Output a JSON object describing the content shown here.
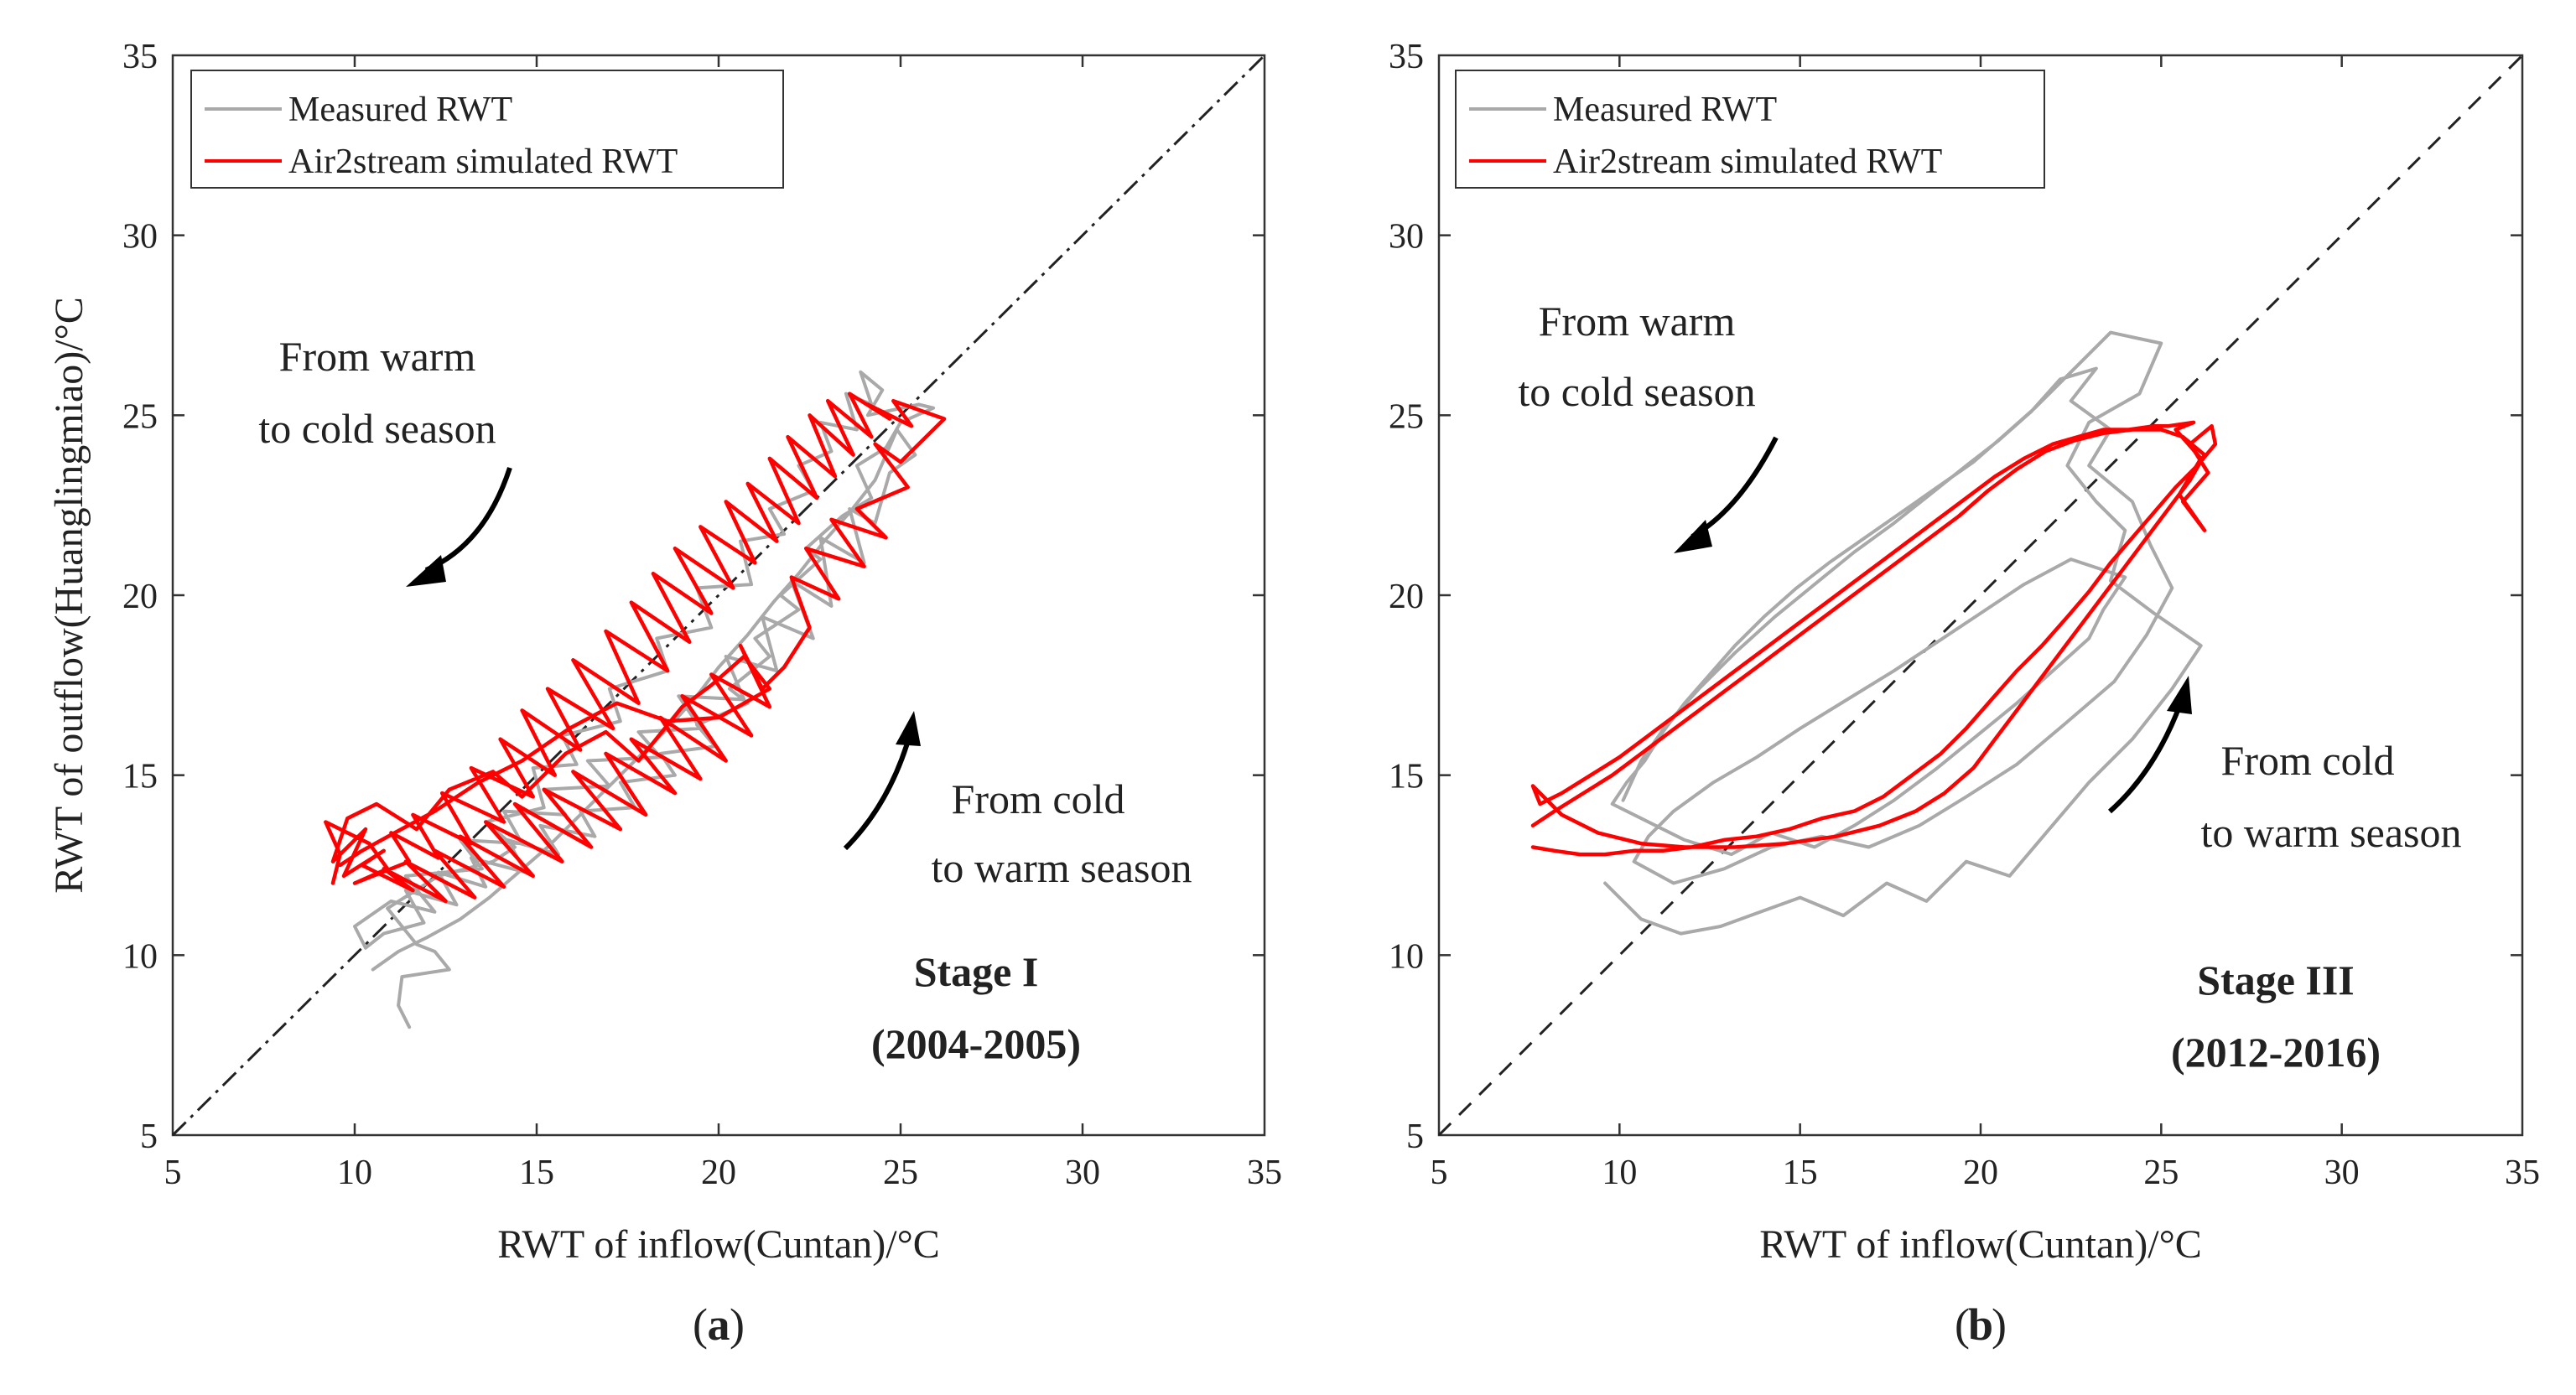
{
  "colors": {
    "measured": "#a9a9a9",
    "simulated": "#ff0000",
    "axis": "#333333",
    "identity": "#222222"
  },
  "chart_data": [
    {
      "panel": "a",
      "type": "line",
      "sublabel_letter": "a",
      "xlabel": "RWT of inflow(Cuntan)/°C",
      "ylabel": "RWT of outflow(Huanglingmiao)/°C",
      "xlim": [
        5,
        35
      ],
      "ylim": [
        5,
        35
      ],
      "xticks": [
        "5",
        "10",
        "15",
        "20",
        "25",
        "30",
        "35"
      ],
      "yticks": [
        "5",
        "10",
        "15",
        "20",
        "25",
        "30",
        "35"
      ],
      "legend": {
        "placement": "top-left",
        "entries": [
          "Measured RWT",
          "Air2stream simulated RWT"
        ]
      },
      "identity_line_style": "dash-dot",
      "annotations": {
        "warm_to_cold": [
          "From warm",
          "to cold season"
        ],
        "cold_to_warm": [
          "From cold",
          "to warm season"
        ],
        "stage": [
          "Stage I",
          "(2004-2005)"
        ]
      },
      "series": [
        {
          "name": "Measured RWT",
          "x": [
            11.5,
            11.2,
            11.3,
            12.6,
            12.2,
            11.7,
            11.3,
            10.9,
            12.3,
            13.8,
            14.4,
            13.6,
            15.2,
            14.9,
            16.1,
            15.7,
            17.3,
            17.0,
            18.6,
            18.3,
            19.8,
            19.4,
            20.9,
            20.6,
            21.8,
            21.4,
            22.6,
            22.2,
            23.1,
            22.8,
            23.8,
            23.5,
            24.2,
            23.9,
            24.5,
            24.1,
            25.5,
            25.9,
            25.0,
            24.6,
            23.8,
            24.2,
            23.4,
            22.4,
            22.8,
            21.7,
            22.2,
            21.0,
            21.4,
            20.3,
            20.8,
            19.4,
            19.9,
            18.4,
            18.8,
            17.3,
            17.7,
            16.2,
            16.6,
            15.1,
            15.6,
            14.2,
            14.7,
            13.2,
            13.6,
            12.3,
            12.8,
            11.4,
            11.9,
            10.8,
            10.3,
            10.0,
            11.0,
            12.2,
            11.4,
            13.5,
            12.9,
            14.6,
            14.1,
            15.8,
            15.2,
            17.0,
            16.4,
            18.4,
            17.8,
            19.5,
            18.9,
            20.7,
            20.2,
            21.6,
            21.2,
            22.6,
            22.0,
            23.1,
            22.8,
            24.0,
            23.6,
            24.3,
            24.7,
            25.4,
            24.9,
            24.3,
            23.6,
            22.9,
            22.2,
            21.5,
            20.8,
            20.0,
            19.4,
            18.6,
            17.8,
            17.0,
            16.1,
            15.3,
            14.5,
            13.7,
            12.9,
            12.0,
            11.2,
            10.5
          ],
          "y": [
            8.0,
            8.6,
            9.4,
            9.6,
            10.1,
            10.3,
            10.8,
            11.3,
            12.2,
            12.6,
            13.0,
            13.7,
            14.1,
            15.2,
            15.3,
            16.1,
            16.5,
            17.4,
            17.9,
            18.8,
            19.1,
            20.2,
            20.3,
            21.5,
            21.7,
            22.4,
            22.9,
            23.6,
            24.0,
            24.8,
            24.6,
            25.6,
            25.3,
            26.2,
            25.7,
            25.0,
            25.3,
            25.2,
            24.8,
            24.1,
            23.6,
            22.7,
            22.2,
            21.3,
            21.0,
            20.0,
            19.6,
            18.8,
            18.3,
            17.4,
            17.0,
            16.4,
            15.8,
            15.6,
            15.0,
            14.8,
            14.1,
            14.0,
            13.3,
            13.6,
            12.8,
            13.2,
            12.3,
            12.7,
            11.9,
            12.3,
            11.4,
            11.8,
            10.9,
            10.6,
            10.2,
            10.8,
            11.5,
            11.2,
            12.2,
            12.4,
            13.2,
            13.1,
            14.0,
            13.9,
            14.6,
            14.7,
            15.4,
            15.5,
            16.2,
            16.3,
            17.2,
            17.1,
            18.3,
            17.9,
            19.4,
            18.8,
            20.4,
            19.7,
            21.6,
            20.9,
            22.4,
            22.0,
            23.4,
            23.9,
            24.6,
            23.2,
            22.3,
            21.5,
            20.6,
            19.8,
            18.9,
            18.0,
            17.2,
            16.3,
            15.5,
            14.7,
            13.8,
            13.0,
            12.3,
            11.6,
            11.0,
            10.5,
            10.1,
            9.6
          ]
        },
        {
          "name": "Air2stream simulated RWT",
          "x": [
            9.4,
            9.6,
            9.2,
            10.4,
            10.9,
            10.0,
            11.5,
            11.0,
            12.3,
            11.6,
            13.2,
            12.4,
            14.1,
            13.2,
            14.9,
            14.0,
            15.5,
            14.6,
            16.2,
            15.3,
            17.1,
            16.0,
            17.8,
            16.9,
            18.6,
            17.6,
            19.2,
            18.2,
            19.8,
            18.8,
            20.4,
            19.5,
            21.0,
            20.2,
            21.6,
            20.8,
            22.2,
            21.4,
            22.7,
            21.9,
            23.2,
            22.5,
            23.7,
            23.0,
            24.2,
            23.6,
            24.7,
            24.1,
            25.3,
            24.8,
            26.2,
            25.0,
            24.3,
            25.2,
            23.8,
            24.6,
            23.1,
            24.0,
            22.4,
            23.3,
            22.0,
            22.5,
            21.8,
            21.2,
            20.6,
            21.4,
            19.8,
            20.9,
            19.0,
            20.2,
            18.4,
            19.5,
            17.6,
            18.8,
            16.9,
            18.0,
            16.0,
            17.3,
            15.2,
            16.5,
            14.4,
            15.7,
            13.6,
            14.9,
            12.9,
            14.1,
            12.2,
            13.3,
            11.4,
            12.5,
            10.8,
            11.6,
            10.2,
            10.8,
            9.7,
            10.3,
            9.4,
            9.8,
            10.6,
            11.7,
            12.6,
            13.8,
            14.6,
            15.8,
            16.9,
            17.8,
            19.0,
            19.8,
            20.7,
            21.4,
            20.0,
            18.6,
            17.2,
            15.9,
            14.6,
            13.4,
            12.2,
            11.1,
            10.2,
            9.6
          ],
          "y": [
            12.0,
            12.8,
            13.7,
            13.1,
            12.4,
            12.0,
            12.6,
            13.4,
            12.7,
            13.9,
            13.1,
            14.5,
            13.7,
            15.2,
            14.4,
            16.0,
            15.0,
            16.8,
            15.7,
            17.4,
            16.3,
            18.2,
            17.0,
            19.0,
            17.9,
            19.8,
            18.7,
            20.6,
            19.5,
            21.3,
            20.2,
            21.9,
            20.9,
            22.6,
            21.5,
            23.1,
            22.0,
            23.8,
            22.7,
            24.4,
            23.3,
            25.0,
            23.9,
            25.4,
            24.4,
            25.6,
            24.9,
            25.3,
            24.7,
            25.4,
            24.9,
            23.7,
            24.2,
            23.0,
            22.4,
            21.6,
            22.1,
            20.8,
            21.3,
            19.9,
            20.5,
            19.1,
            18.0,
            17.4,
            18.6,
            16.9,
            17.8,
            16.1,
            17.2,
            15.4,
            16.6,
            14.9,
            16.0,
            14.5,
            15.6,
            13.9,
            15.1,
            13.5,
            14.6,
            13.0,
            14.2,
            12.6,
            13.7,
            12.2,
            13.3,
            11.9,
            12.9,
            11.6,
            12.6,
            11.5,
            12.4,
            11.8,
            12.5,
            12.9,
            12.2,
            13.5,
            12.6,
            13.8,
            14.2,
            13.5,
            14.6,
            15.1,
            14.4,
            15.6,
            16.2,
            15.4,
            16.9,
            17.5,
            18.3,
            17.4,
            16.6,
            16.5,
            17.0,
            16.3,
            15.4,
            14.8,
            14.0,
            13.4,
            12.9,
            12.5
          ]
        }
      ]
    },
    {
      "panel": "b",
      "type": "line",
      "sublabel_letter": "b",
      "xlabel": "RWT of inflow(Cuntan)/°C",
      "ylabel": "",
      "xlim": [
        5,
        35
      ],
      "ylim": [
        5,
        35
      ],
      "xticks": [
        "5",
        "10",
        "15",
        "20",
        "25",
        "30",
        "35"
      ],
      "yticks": [
        "5",
        "10",
        "15",
        "20",
        "25",
        "30",
        "35"
      ],
      "legend": {
        "placement": "top-left",
        "entries": [
          "Measured RWT",
          "Air2stream simulated RWT"
        ]
      },
      "identity_line_style": "dashed",
      "annotations": {
        "warm_to_cold": [
          "From warm",
          "to cold season"
        ],
        "cold_to_warm": [
          "From cold",
          "to warm season"
        ],
        "stage": [
          "Stage III",
          "(2012-2016)"
        ]
      },
      "series": [
        {
          "name": "Measured RWT",
          "x": [
            9.6,
            10.6,
            11.7,
            12.8,
            13.9,
            15.0,
            16.2,
            17.4,
            18.5,
            19.6,
            20.8,
            21.9,
            23.0,
            24.2,
            25.3,
            26.1,
            24.8,
            23.6,
            24.0,
            23.2,
            22.4,
            23.0,
            24.4,
            25.0,
            23.6,
            22.4,
            21.5,
            20.6,
            19.8,
            18.8,
            17.8,
            16.8,
            15.8,
            14.9,
            14.0,
            13.2,
            12.5,
            11.8,
            11.2,
            10.7,
            10.2,
            9.8,
            10.6,
            11.8,
            13.1,
            14.2,
            15.4,
            16.5,
            17.6,
            18.8,
            19.9,
            21.0,
            22.0,
            23.0,
            23.4,
            24.0,
            22.5,
            21.2,
            20.0,
            18.8,
            17.6,
            16.3,
            15.0,
            13.8,
            12.6,
            11.5,
            10.8,
            10.4,
            11.5,
            12.9,
            14.2,
            15.6,
            16.9,
            18.3,
            19.6,
            21.0,
            22.3,
            23.7,
            24.6,
            25.3,
            24.7,
            24.2,
            23.0,
            23.6,
            22.5,
            23.2,
            22.2,
            21.4,
            20.5,
            19.6,
            18.6,
            17.6,
            16.5,
            15.4,
            14.3,
            13.2,
            12.2,
            11.3,
            10.6,
            10.1
          ],
          "y": [
            12.0,
            11.0,
            10.6,
            10.8,
            11.2,
            11.6,
            11.1,
            12.0,
            11.5,
            12.6,
            12.2,
            13.5,
            14.8,
            16.0,
            17.4,
            18.6,
            19.5,
            20.4,
            21.8,
            22.6,
            23.6,
            24.8,
            25.6,
            27.0,
            27.3,
            26.1,
            25.2,
            24.4,
            23.7,
            23.0,
            22.3,
            21.6,
            20.9,
            20.2,
            19.4,
            18.6,
            17.8,
            17.0,
            16.2,
            15.4,
            14.8,
            14.2,
            13.8,
            13.2,
            12.8,
            13.4,
            13.0,
            13.6,
            14.3,
            15.2,
            16.1,
            17.0,
            17.9,
            18.8,
            19.6,
            20.5,
            21.0,
            20.3,
            19.5,
            18.7,
            17.9,
            17.1,
            16.3,
            15.5,
            14.8,
            14.0,
            13.3,
            12.6,
            12.0,
            12.4,
            13.0,
            13.3,
            13.0,
            13.6,
            14.4,
            15.3,
            16.4,
            17.6,
            18.9,
            20.2,
            21.4,
            22.6,
            23.6,
            24.6,
            25.4,
            26.3,
            26.0,
            25.1,
            24.3,
            23.6,
            22.8,
            22.0,
            21.2,
            20.3,
            19.4,
            18.4,
            17.4,
            16.4,
            15.4,
            14.3
          ]
        },
        {
          "name": "Air2stream simulated RWT",
          "x": [
            7.6,
            8.2,
            8.9,
            9.6,
            10.4,
            11.2,
            12.0,
            12.9,
            13.8,
            14.7,
            15.6,
            16.5,
            17.3,
            18.1,
            18.9,
            19.6,
            20.3,
            21.0,
            21.7,
            22.4,
            23.0,
            23.6,
            24.2,
            24.8,
            25.4,
            26.0,
            26.5,
            26.4,
            25.8,
            26.3,
            25.6,
            26.2,
            25.5,
            26.1,
            25.4,
            25.9,
            25.2,
            24.8,
            24.1,
            23.4,
            22.7,
            22.0,
            21.2,
            20.4,
            19.6,
            18.8,
            18.0,
            17.2,
            16.4,
            15.6,
            14.8,
            14.0,
            13.2,
            12.4,
            11.6,
            10.8,
            10.0,
            9.2,
            8.4,
            7.8,
            7.6,
            8.4,
            9.4,
            10.6,
            11.8,
            13.2,
            14.6,
            16.0,
            17.2,
            18.2,
            19.0,
            19.8,
            20.4,
            21.0,
            21.6,
            22.2,
            22.8,
            23.4,
            24.0,
            24.6,
            25.2,
            25.8,
            26.2,
            25.6,
            25.0,
            24.2,
            23.4,
            22.6,
            21.8,
            21.0,
            20.2,
            19.4,
            18.6,
            17.8,
            17.0,
            16.2,
            15.4,
            14.6,
            13.8,
            13.0,
            12.2,
            11.4,
            10.6,
            9.8,
            9.0,
            8.2,
            7.6
          ],
          "y": [
            13.0,
            12.9,
            12.8,
            12.8,
            12.9,
            12.9,
            13.0,
            13.2,
            13.3,
            13.5,
            13.8,
            14.0,
            14.4,
            15.0,
            15.6,
            16.3,
            17.1,
            17.9,
            18.6,
            19.4,
            20.1,
            20.9,
            21.6,
            22.3,
            23.0,
            23.6,
            24.2,
            24.7,
            24.2,
            23.4,
            22.6,
            21.8,
            22.8,
            23.8,
            24.6,
            24.8,
            24.7,
            24.7,
            24.6,
            24.6,
            24.4,
            24.2,
            23.8,
            23.3,
            22.7,
            22.1,
            21.5,
            20.9,
            20.3,
            19.7,
            19.1,
            18.5,
            17.9,
            17.3,
            16.7,
            16.1,
            15.5,
            15.0,
            14.5,
            14.2,
            14.7,
            13.9,
            13.4,
            13.1,
            13.0,
            13.0,
            13.1,
            13.3,
            13.6,
            14.0,
            14.5,
            15.2,
            16.0,
            16.8,
            17.6,
            18.4,
            19.2,
            20.0,
            20.8,
            21.6,
            22.4,
            23.2,
            23.9,
            24.4,
            24.6,
            24.6,
            24.5,
            24.3,
            24.0,
            23.5,
            22.9,
            22.2,
            21.6,
            21.0,
            20.4,
            19.8,
            19.2,
            18.6,
            18.0,
            17.4,
            16.8,
            16.2,
            15.6,
            15.0,
            14.5,
            14.0,
            13.6
          ]
        }
      ]
    }
  ]
}
